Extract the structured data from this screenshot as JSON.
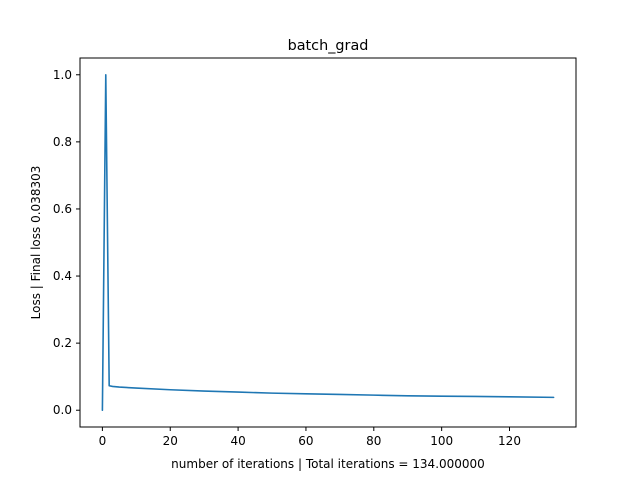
{
  "chart_data": {
    "type": "line",
    "title": "batch_grad",
    "xlabel": "number of iterations | Total iterations = 134.000000",
    "ylabel": "Loss | Final loss 0.038303",
    "xlim": [
      -6.6,
      139.6
    ],
    "ylim": [
      -0.05,
      1.05
    ],
    "x_ticks": [
      0,
      20,
      40,
      60,
      80,
      100,
      120
    ],
    "x_tick_labels": [
      "0",
      "20",
      "40",
      "60",
      "80",
      "100",
      "120"
    ],
    "y_ticks": [
      0.0,
      0.2,
      0.4,
      0.6,
      0.8,
      1.0
    ],
    "y_tick_labels": [
      "0.0",
      "0.2",
      "0.4",
      "0.6",
      "0.8",
      "1.0"
    ],
    "grid": false,
    "legend": "none",
    "series": [
      {
        "color": "#1f77b4",
        "x": [
          0,
          1,
          2,
          3,
          5,
          10,
          20,
          30,
          40,
          50,
          60,
          70,
          80,
          90,
          100,
          110,
          120,
          133
        ],
        "y": [
          0.0,
          1.0,
          0.073,
          0.071,
          0.069,
          0.066,
          0.061,
          0.057,
          0.054,
          0.051,
          0.049,
          0.047,
          0.045,
          0.043,
          0.042,
          0.041,
          0.04,
          0.038303
        ]
      }
    ]
  }
}
